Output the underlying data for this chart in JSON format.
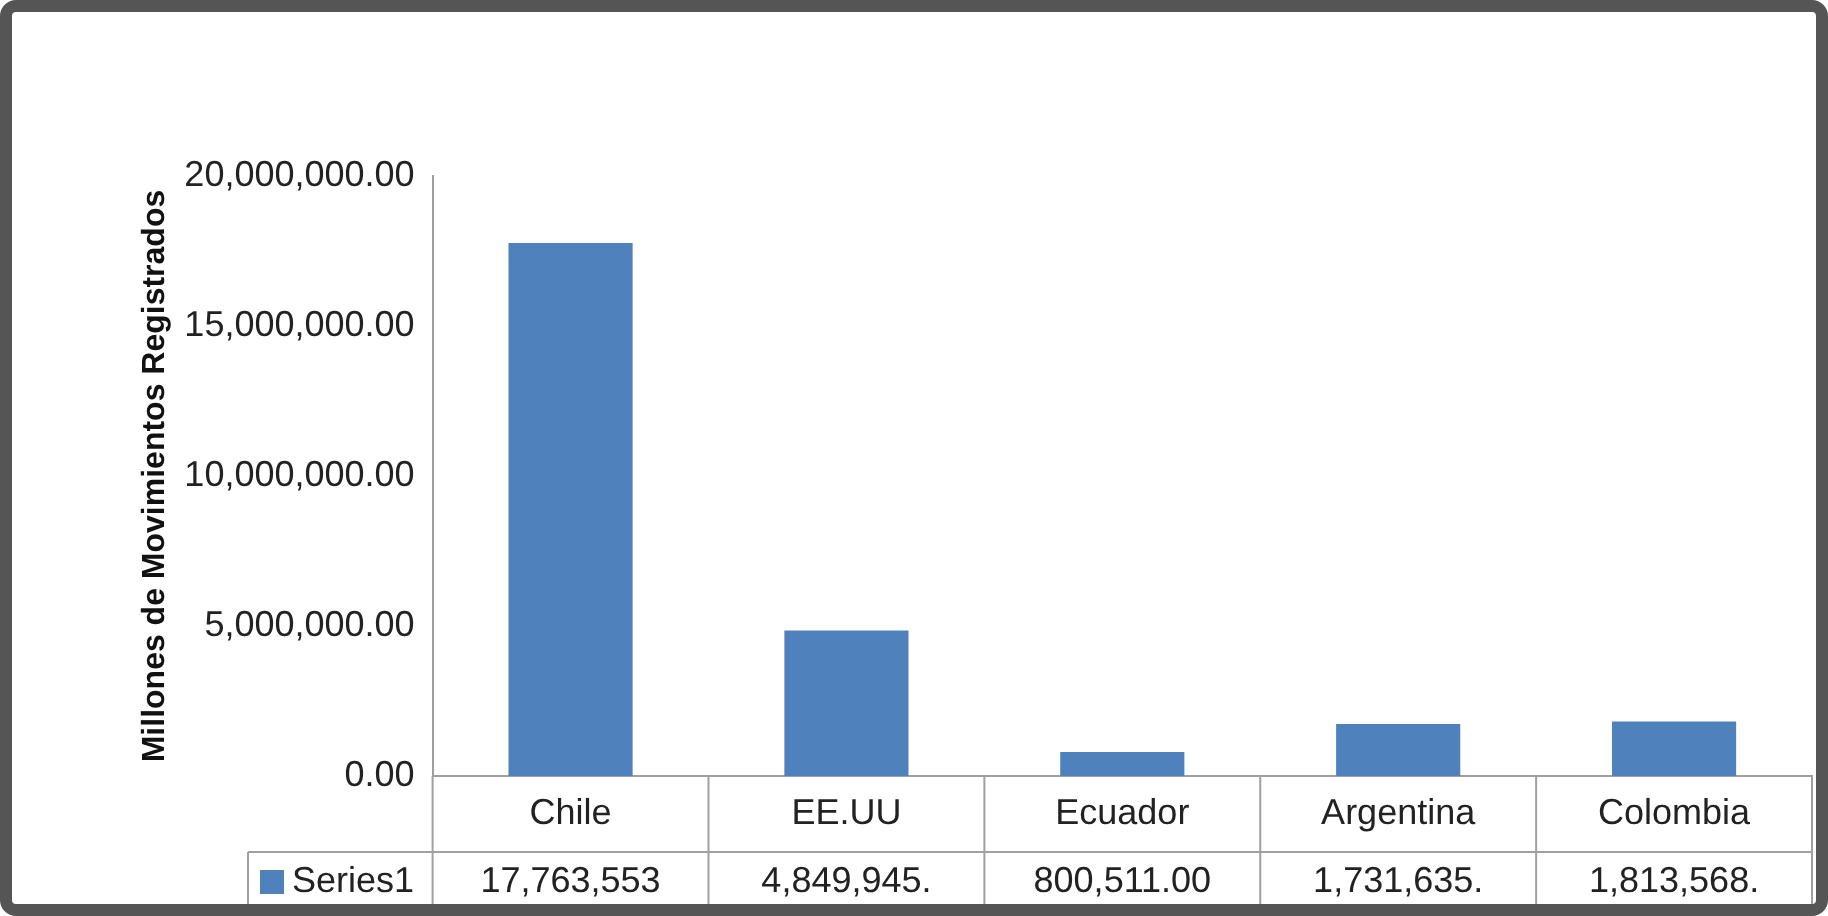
{
  "chart_data": {
    "type": "bar",
    "ylabel": "Millones de Movimientos Registrados",
    "categories": [
      "Chile",
      "EE.UU",
      "Ecuador",
      "Argentina",
      "Colombia"
    ],
    "series": [
      {
        "name": "Series1",
        "color": "#4f81bd",
        "values": [
          17763553,
          4849945,
          800511,
          1731635,
          1813568
        ],
        "value_labels": [
          "17,763,553",
          "4,849,945.",
          "800,511.00",
          "1,731,635.",
          "1,813,568."
        ]
      }
    ],
    "ylim": [
      0,
      20000000
    ],
    "yticks": [
      {
        "value": 0,
        "label": "0.00"
      },
      {
        "value": 5000000,
        "label": "5,000,000.00"
      },
      {
        "value": 10000000,
        "label": "10,000,000.00"
      },
      {
        "value": 15000000,
        "label": "15,000,000.00"
      },
      {
        "value": 20000000,
        "label": "20,000,000.00"
      }
    ],
    "grid": false,
    "legend": "bottom"
  }
}
